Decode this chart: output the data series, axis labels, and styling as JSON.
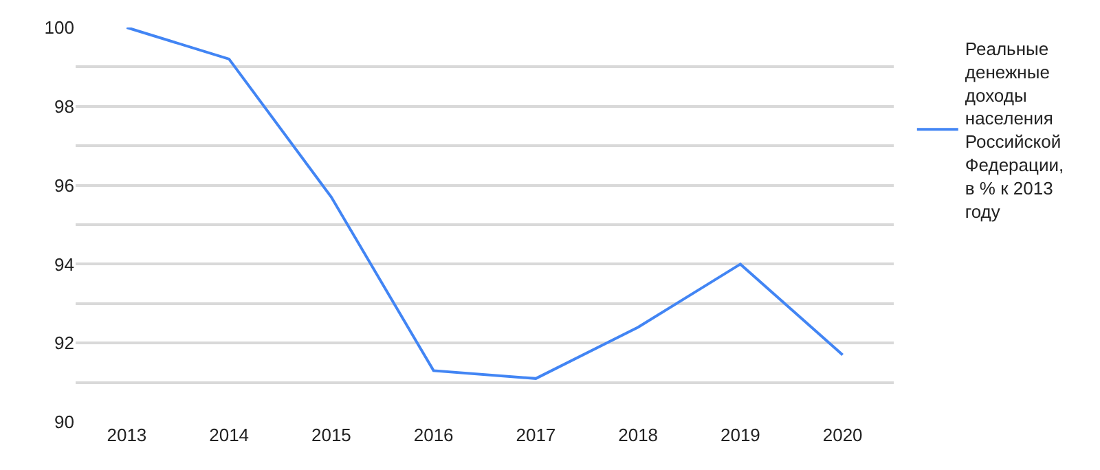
{
  "chart_data": {
    "type": "line",
    "categories": [
      "2013",
      "2014",
      "2015",
      "2016",
      "2017",
      "2018",
      "2019",
      "2020"
    ],
    "series": [
      {
        "name": "Реальные денежные доходы населения Российской Федерации, в % к 2013 году",
        "color": "#4285f4",
        "values": [
          100,
          99.2,
          95.7,
          91.3,
          91.1,
          92.4,
          94.0,
          91.7
        ]
      }
    ],
    "ylim": [
      90,
      100
    ],
    "yticks": [
      90,
      {
        "value": 91,
        "label": null
      },
      92,
      {
        "value": 93,
        "label": null
      },
      94,
      {
        "value": 95,
        "label": null
      },
      96,
      {
        "value": 97,
        "label": null
      },
      98,
      {
        "value": 99,
        "label": null
      },
      100
    ],
    "grid": "y",
    "legend": "right",
    "marker": "none",
    "line_style": "solid"
  }
}
